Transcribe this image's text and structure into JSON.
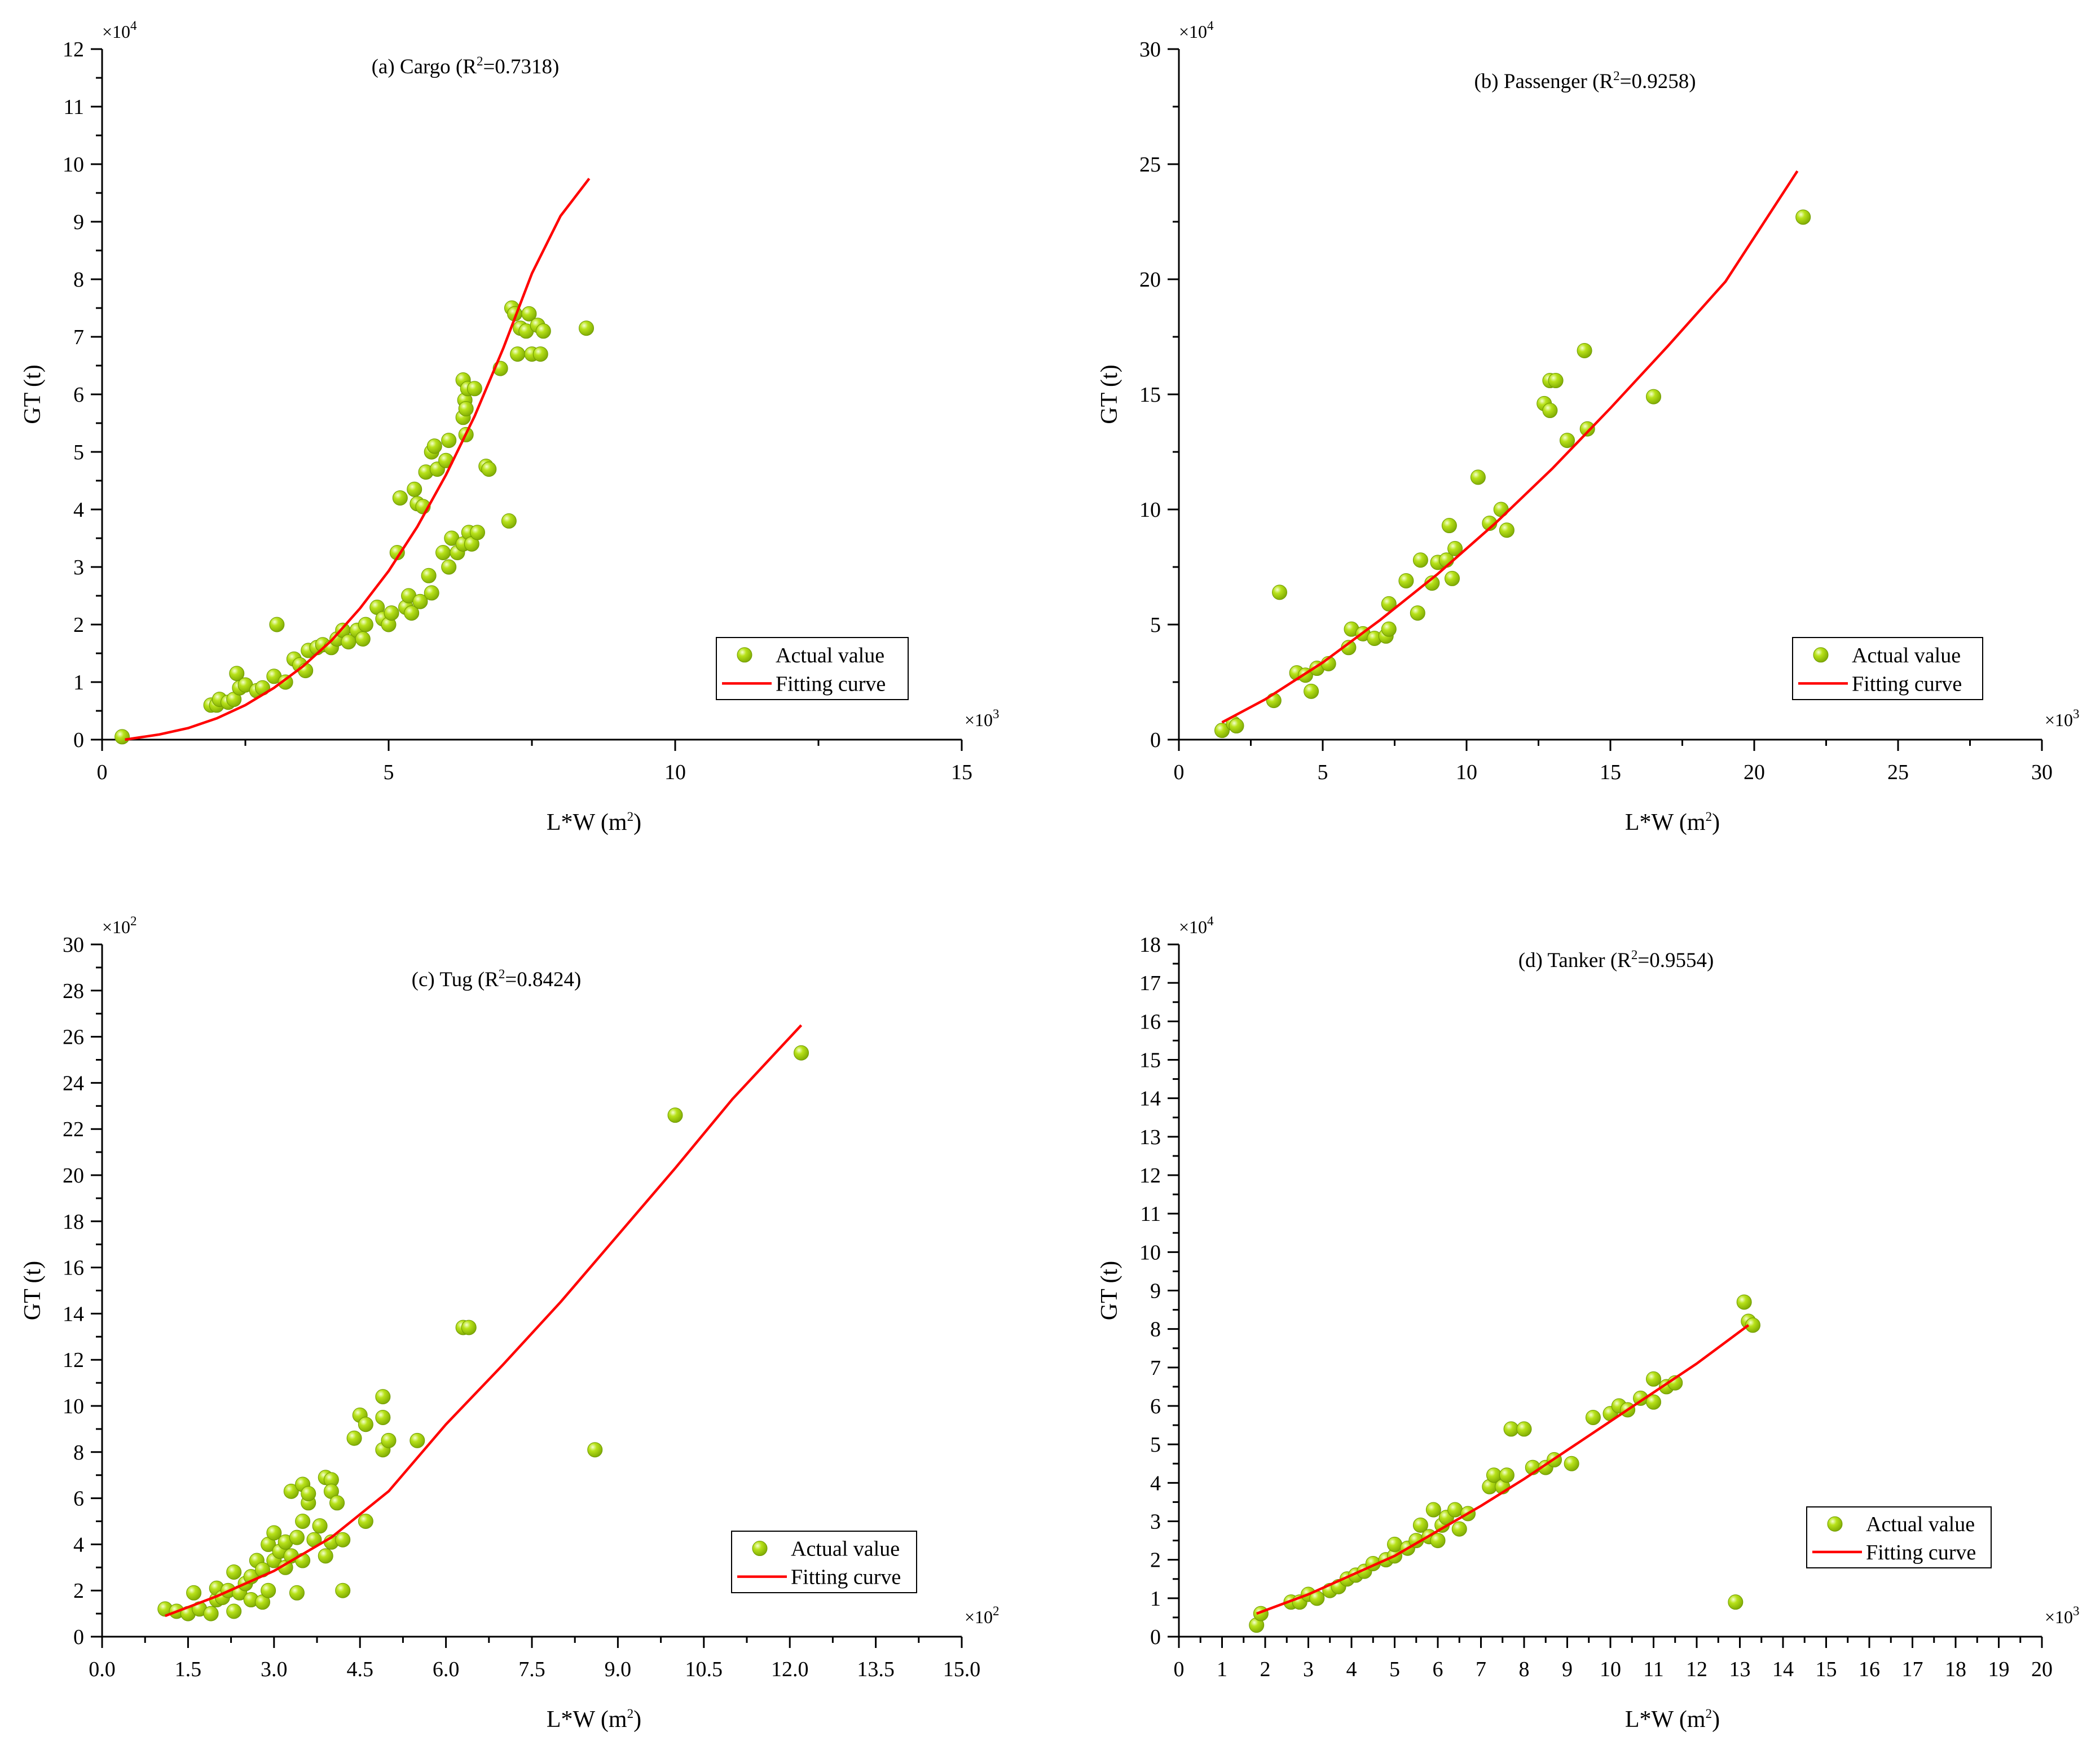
{
  "colors": {
    "point_fill": "#99cc00",
    "point_edge": "#6f9a00",
    "curve": "#ff0000",
    "axis": "#000000"
  },
  "legend": {
    "actual": "Actual value",
    "fit": "Fitting curve"
  },
  "chart_data": [
    {
      "id": "a",
      "type": "scatter",
      "title": "(a)  Cargo (R",
      "r2_sup": "2",
      "r2_value": "=0.7318)",
      "xlabel": "L*W (m",
      "ylabel": "GT (t)",
      "label_sup": "2",
      "label_close": ")",
      "x_multiplier": "×10",
      "x_exp": "3",
      "y_multiplier": "×10",
      "y_exp": "4",
      "xlim": [
        0,
        15
      ],
      "ylim": [
        0,
        12
      ],
      "xticks": [
        0,
        5,
        10,
        15
      ],
      "yticks": [
        0,
        1,
        2,
        3,
        4,
        5,
        6,
        7,
        8,
        9,
        10,
        11,
        12
      ],
      "xtick_labels": [
        "0",
        "5",
        "10",
        "15"
      ],
      "ytick_labels": [
        "0",
        "1",
        "2",
        "3",
        "4",
        "5",
        "6",
        "7",
        "8",
        "9",
        "10",
        "11",
        "12"
      ],
      "legend_position": "bottom-right",
      "points": [
        [
          0.35,
          0.05
        ],
        [
          1.9,
          0.6
        ],
        [
          2.0,
          0.6
        ],
        [
          2.05,
          0.7
        ],
        [
          2.2,
          0.65
        ],
        [
          2.3,
          0.7
        ],
        [
          2.35,
          1.15
        ],
        [
          2.4,
          0.9
        ],
        [
          2.5,
          0.95
        ],
        [
          2.7,
          0.85
        ],
        [
          2.8,
          0.9
        ],
        [
          3.0,
          1.1
        ],
        [
          3.05,
          2.0
        ],
        [
          3.2,
          1.0
        ],
        [
          3.35,
          1.4
        ],
        [
          3.45,
          1.3
        ],
        [
          3.55,
          1.2
        ],
        [
          3.6,
          1.55
        ],
        [
          3.75,
          1.6
        ],
        [
          3.85,
          1.65
        ],
        [
          4.0,
          1.6
        ],
        [
          4.1,
          1.75
        ],
        [
          4.2,
          1.9
        ],
        [
          4.3,
          1.7
        ],
        [
          4.45,
          1.9
        ],
        [
          4.55,
          1.75
        ],
        [
          4.6,
          2.0
        ],
        [
          4.8,
          2.3
        ],
        [
          4.9,
          2.1
        ],
        [
          5.0,
          2.0
        ],
        [
          5.05,
          2.2
        ],
        [
          5.15,
          3.25
        ],
        [
          5.2,
          4.2
        ],
        [
          5.3,
          2.3
        ],
        [
          5.35,
          2.5
        ],
        [
          5.4,
          2.2
        ],
        [
          5.45,
          4.35
        ],
        [
          5.5,
          4.1
        ],
        [
          5.55,
          2.4
        ],
        [
          5.6,
          4.05
        ],
        [
          5.65,
          4.65
        ],
        [
          5.7,
          2.85
        ],
        [
          5.75,
          5.0
        ],
        [
          5.75,
          2.55
        ],
        [
          5.8,
          5.1
        ],
        [
          5.85,
          4.7
        ],
        [
          5.95,
          3.25
        ],
        [
          6.0,
          4.85
        ],
        [
          6.05,
          3.0
        ],
        [
          6.05,
          5.2
        ],
        [
          6.1,
          3.5
        ],
        [
          6.2,
          3.25
        ],
        [
          6.3,
          3.4
        ],
        [
          6.3,
          5.6
        ],
        [
          6.3,
          6.25
        ],
        [
          6.33,
          5.9
        ],
        [
          6.35,
          5.75
        ],
        [
          6.35,
          5.3
        ],
        [
          6.38,
          6.1
        ],
        [
          6.4,
          3.6
        ],
        [
          6.45,
          3.4
        ],
        [
          6.5,
          6.1
        ],
        [
          6.55,
          3.6
        ],
        [
          6.7,
          4.75
        ],
        [
          6.75,
          4.7
        ],
        [
          6.95,
          6.45
        ],
        [
          7.1,
          3.8
        ],
        [
          7.15,
          7.5
        ],
        [
          7.2,
          7.4
        ],
        [
          7.25,
          6.7
        ],
        [
          7.3,
          7.15
        ],
        [
          7.4,
          7.1
        ],
        [
          7.45,
          7.4
        ],
        [
          7.5,
          6.7
        ],
        [
          7.6,
          7.2
        ],
        [
          7.65,
          6.7
        ],
        [
          7.7,
          7.1
        ],
        [
          8.45,
          7.15
        ]
      ],
      "curve": [
        [
          0.4,
          0.0
        ],
        [
          1.0,
          0.09
        ],
        [
          1.5,
          0.2
        ],
        [
          2.0,
          0.37
        ],
        [
          2.5,
          0.6
        ],
        [
          3.0,
          0.9
        ],
        [
          3.5,
          1.27
        ],
        [
          4.0,
          1.72
        ],
        [
          4.5,
          2.28
        ],
        [
          5.0,
          2.93
        ],
        [
          5.5,
          3.7
        ],
        [
          6.0,
          4.6
        ],
        [
          6.5,
          5.62
        ],
        [
          7.0,
          6.8
        ],
        [
          7.5,
          8.1
        ],
        [
          8.0,
          9.1
        ],
        [
          8.5,
          9.75
        ]
      ]
    },
    {
      "id": "b",
      "type": "scatter",
      "title": "(b)  Passenger  (R",
      "r2_sup": "2",
      "r2_value": "=0.9258)",
      "xlabel": "L*W (m",
      "ylabel": "GT (t)",
      "label_sup": "2",
      "label_close": ")",
      "x_multiplier": "×10",
      "x_exp": "3",
      "y_multiplier": "×10",
      "y_exp": "4",
      "xlim": [
        0,
        30
      ],
      "ylim": [
        0,
        30
      ],
      "xticks": [
        0,
        5,
        10,
        15,
        20,
        25,
        30
      ],
      "yticks": [
        0,
        5,
        10,
        15,
        20,
        25,
        30
      ],
      "xtick_labels": [
        "0",
        "5",
        "10",
        "15",
        "20",
        "25",
        "30"
      ],
      "ytick_labels": [
        "0",
        "5",
        "10",
        "15",
        "20",
        "25",
        "30"
      ],
      "legend_position": "bottom-right",
      "points": [
        [
          1.5,
          0.4
        ],
        [
          1.9,
          0.7
        ],
        [
          2.0,
          0.6
        ],
        [
          3.3,
          1.7
        ],
        [
          3.5,
          6.4
        ],
        [
          4.1,
          2.9
        ],
        [
          4.4,
          2.8
        ],
        [
          4.6,
          2.1
        ],
        [
          4.8,
          3.1
        ],
        [
          5.2,
          3.3
        ],
        [
          5.9,
          4.0
        ],
        [
          6.0,
          4.8
        ],
        [
          6.4,
          4.6
        ],
        [
          6.8,
          4.4
        ],
        [
          7.2,
          4.5
        ],
        [
          7.3,
          4.8
        ],
        [
          7.3,
          5.9
        ],
        [
          7.9,
          6.9
        ],
        [
          8.3,
          5.5
        ],
        [
          8.4,
          7.8
        ],
        [
          8.8,
          6.8
        ],
        [
          9.0,
          7.7
        ],
        [
          9.3,
          7.8
        ],
        [
          9.4,
          9.3
        ],
        [
          9.5,
          7.0
        ],
        [
          9.6,
          8.3
        ],
        [
          10.4,
          11.4
        ],
        [
          10.8,
          9.4
        ],
        [
          11.2,
          10.0
        ],
        [
          11.4,
          9.1
        ],
        [
          12.7,
          14.6
        ],
        [
          12.9,
          14.3
        ],
        [
          12.9,
          15.6
        ],
        [
          13.1,
          15.6
        ],
        [
          13.5,
          13.0
        ],
        [
          14.1,
          16.9
        ],
        [
          14.2,
          13.5
        ],
        [
          16.5,
          14.9
        ],
        [
          21.7,
          22.7
        ]
      ],
      "curve": [
        [
          1.5,
          0.75
        ],
        [
          3.0,
          1.75
        ],
        [
          5.0,
          3.35
        ],
        [
          7.0,
          5.2
        ],
        [
          9.0,
          7.2
        ],
        [
          11.0,
          9.4
        ],
        [
          13.0,
          11.8
        ],
        [
          15.0,
          14.4
        ],
        [
          17.0,
          17.1
        ],
        [
          19.0,
          19.9
        ],
        [
          21.5,
          24.7
        ]
      ]
    },
    {
      "id": "c",
      "type": "scatter",
      "title": "(c)  Tug (R",
      "r2_sup": "2",
      "r2_value": "=0.8424)",
      "xlabel": "L*W (m",
      "ylabel": "GT (t)",
      "label_sup": "2",
      "label_close": ")",
      "x_multiplier": "×10",
      "x_exp": "2",
      "y_multiplier": "×10",
      "y_exp": "2",
      "xlim": [
        0,
        15
      ],
      "ylim": [
        0,
        30
      ],
      "xticks": [
        0,
        1.5,
        3,
        4.5,
        6,
        7.5,
        9,
        10.5,
        12,
        13.5,
        15
      ],
      "yticks": [
        0,
        2,
        4,
        6,
        8,
        10,
        12,
        14,
        16,
        18,
        20,
        22,
        24,
        26,
        28,
        30
      ],
      "xtick_labels": [
        "0.0",
        "1.5",
        "3.0",
        "4.5",
        "6.0",
        "7.5",
        "9.0",
        "10.5",
        "12.0",
        "13.5",
        "15.0"
      ],
      "ytick_labels": [
        "0",
        "2",
        "4",
        "6",
        "8",
        "10",
        "12",
        "14",
        "16",
        "18",
        "20",
        "22",
        "24",
        "26",
        "28",
        "30"
      ],
      "legend_position": "bottom-right",
      "points": [
        [
          1.1,
          1.2
        ],
        [
          1.3,
          1.1
        ],
        [
          1.5,
          1.0
        ],
        [
          1.6,
          1.9
        ],
        [
          1.7,
          1.2
        ],
        [
          1.9,
          1.0
        ],
        [
          2.0,
          1.6
        ],
        [
          2.0,
          2.1
        ],
        [
          2.1,
          1.7
        ],
        [
          2.2,
          2.0
        ],
        [
          2.3,
          1.1
        ],
        [
          2.3,
          2.8
        ],
        [
          2.4,
          1.9
        ],
        [
          2.5,
          2.3
        ],
        [
          2.6,
          2.6
        ],
        [
          2.6,
          1.6
        ],
        [
          2.7,
          3.3
        ],
        [
          2.8,
          1.5
        ],
        [
          2.8,
          2.9
        ],
        [
          2.9,
          2.0
        ],
        [
          2.9,
          4.0
        ],
        [
          3.0,
          3.3
        ],
        [
          3.0,
          4.5
        ],
        [
          3.1,
          3.7
        ],
        [
          3.2,
          3.0
        ],
        [
          3.2,
          4.1
        ],
        [
          3.3,
          6.3
        ],
        [
          3.3,
          3.5
        ],
        [
          3.4,
          1.9
        ],
        [
          3.4,
          4.3
        ],
        [
          3.5,
          5.0
        ],
        [
          3.5,
          6.6
        ],
        [
          3.5,
          3.3
        ],
        [
          3.6,
          5.8
        ],
        [
          3.6,
          6.2
        ],
        [
          3.7,
          4.2
        ],
        [
          3.8,
          4.8
        ],
        [
          3.9,
          6.9
        ],
        [
          3.9,
          3.5
        ],
        [
          4.0,
          6.8
        ],
        [
          4.0,
          6.3
        ],
        [
          4.0,
          4.1
        ],
        [
          4.1,
          5.8
        ],
        [
          4.2,
          4.2
        ],
        [
          4.2,
          2.0
        ],
        [
          4.4,
          8.6
        ],
        [
          4.5,
          9.6
        ],
        [
          4.6,
          9.2
        ],
        [
          4.6,
          5.0
        ],
        [
          4.9,
          8.1
        ],
        [
          4.9,
          9.5
        ],
        [
          4.9,
          10.4
        ],
        [
          5.0,
          8.5
        ],
        [
          5.5,
          8.5
        ],
        [
          6.3,
          13.4
        ],
        [
          6.4,
          13.4
        ],
        [
          8.6,
          8.1
        ],
        [
          10.0,
          22.6
        ],
        [
          12.2,
          25.3
        ]
      ],
      "curve": [
        [
          1.1,
          0.9
        ],
        [
          2.0,
          1.75
        ],
        [
          3.0,
          2.85
        ],
        [
          4.0,
          4.3
        ],
        [
          5.0,
          6.3
        ],
        [
          6.0,
          9.2
        ],
        [
          7.0,
          11.8
        ],
        [
          8.0,
          14.5
        ],
        [
          9.0,
          17.4
        ],
        [
          10.0,
          20.3
        ],
        [
          11.0,
          23.3
        ],
        [
          12.2,
          26.5
        ]
      ]
    },
    {
      "id": "d",
      "type": "scatter",
      "title": "(d)  Tanker  (R",
      "r2_sup": "2",
      "r2_value": "=0.9554)",
      "xlabel": "L*W (m",
      "ylabel": "GT (t)",
      "label_sup": "2",
      "label_close": ")",
      "x_multiplier": "×10",
      "x_exp": "3",
      "y_multiplier": "×10",
      "y_exp": "4",
      "xlim": [
        0,
        20
      ],
      "ylim": [
        0,
        18
      ],
      "xticks": [
        0,
        1,
        2,
        3,
        4,
        5,
        6,
        7,
        8,
        9,
        10,
        11,
        12,
        13,
        14,
        15,
        16,
        17,
        18,
        19,
        20
      ],
      "yticks": [
        0,
        1,
        2,
        3,
        4,
        5,
        6,
        7,
        8,
        9,
        10,
        11,
        12,
        13,
        14,
        15,
        16,
        17,
        18
      ],
      "xtick_labels": [
        "0",
        "1",
        "2",
        "3",
        "4",
        "5",
        "6",
        "7",
        "8",
        "9",
        "10",
        "11",
        "12",
        "13",
        "14",
        "15",
        "16",
        "17",
        "18",
        "19",
        "20"
      ],
      "ytick_labels": [
        "0",
        "1",
        "2",
        "3",
        "4",
        "5",
        "6",
        "7",
        "8",
        "9",
        "10",
        "11",
        "12",
        "13",
        "14",
        "15",
        "16",
        "17",
        "18"
      ],
      "legend_position": "bottom-right",
      "points": [
        [
          1.8,
          0.3
        ],
        [
          1.9,
          0.6
        ],
        [
          2.6,
          0.9
        ],
        [
          2.8,
          0.9
        ],
        [
          3.0,
          1.1
        ],
        [
          3.2,
          1.0
        ],
        [
          3.5,
          1.2
        ],
        [
          3.7,
          1.3
        ],
        [
          3.9,
          1.5
        ],
        [
          4.1,
          1.6
        ],
        [
          4.3,
          1.7
        ],
        [
          4.5,
          1.9
        ],
        [
          4.8,
          2.0
        ],
        [
          5.0,
          2.1
        ],
        [
          5.0,
          2.4
        ],
        [
          5.3,
          2.3
        ],
        [
          5.5,
          2.5
        ],
        [
          5.6,
          2.9
        ],
        [
          5.8,
          2.6
        ],
        [
          5.9,
          3.3
        ],
        [
          6.0,
          2.5
        ],
        [
          6.1,
          2.9
        ],
        [
          6.2,
          3.1
        ],
        [
          6.4,
          3.3
        ],
        [
          6.5,
          2.8
        ],
        [
          6.7,
          3.2
        ],
        [
          7.2,
          3.9
        ],
        [
          7.3,
          4.2
        ],
        [
          7.5,
          3.9
        ],
        [
          7.6,
          4.2
        ],
        [
          7.7,
          5.4
        ],
        [
          8.0,
          5.4
        ],
        [
          8.2,
          4.4
        ],
        [
          8.5,
          4.4
        ],
        [
          8.7,
          4.6
        ],
        [
          9.1,
          4.5
        ],
        [
          9.6,
          5.7
        ],
        [
          10.0,
          5.8
        ],
        [
          10.2,
          6.0
        ],
        [
          10.4,
          5.9
        ],
        [
          10.7,
          6.2
        ],
        [
          11.0,
          6.1
        ],
        [
          11.0,
          6.7
        ],
        [
          11.3,
          6.5
        ],
        [
          11.5,
          6.6
        ],
        [
          12.9,
          0.9
        ],
        [
          13.1,
          8.7
        ],
        [
          13.2,
          8.2
        ],
        [
          13.3,
          8.1
        ]
      ],
      "curve": [
        [
          1.8,
          0.6
        ],
        [
          3.0,
          1.1
        ],
        [
          4.0,
          1.6
        ],
        [
          5.0,
          2.1
        ],
        [
          6.0,
          2.75
        ],
        [
          7.0,
          3.4
        ],
        [
          8.0,
          4.1
        ],
        [
          9.0,
          4.85
        ],
        [
          10.0,
          5.6
        ],
        [
          11.0,
          6.35
        ],
        [
          12.0,
          7.1
        ],
        [
          13.2,
          8.1
        ]
      ]
    }
  ]
}
